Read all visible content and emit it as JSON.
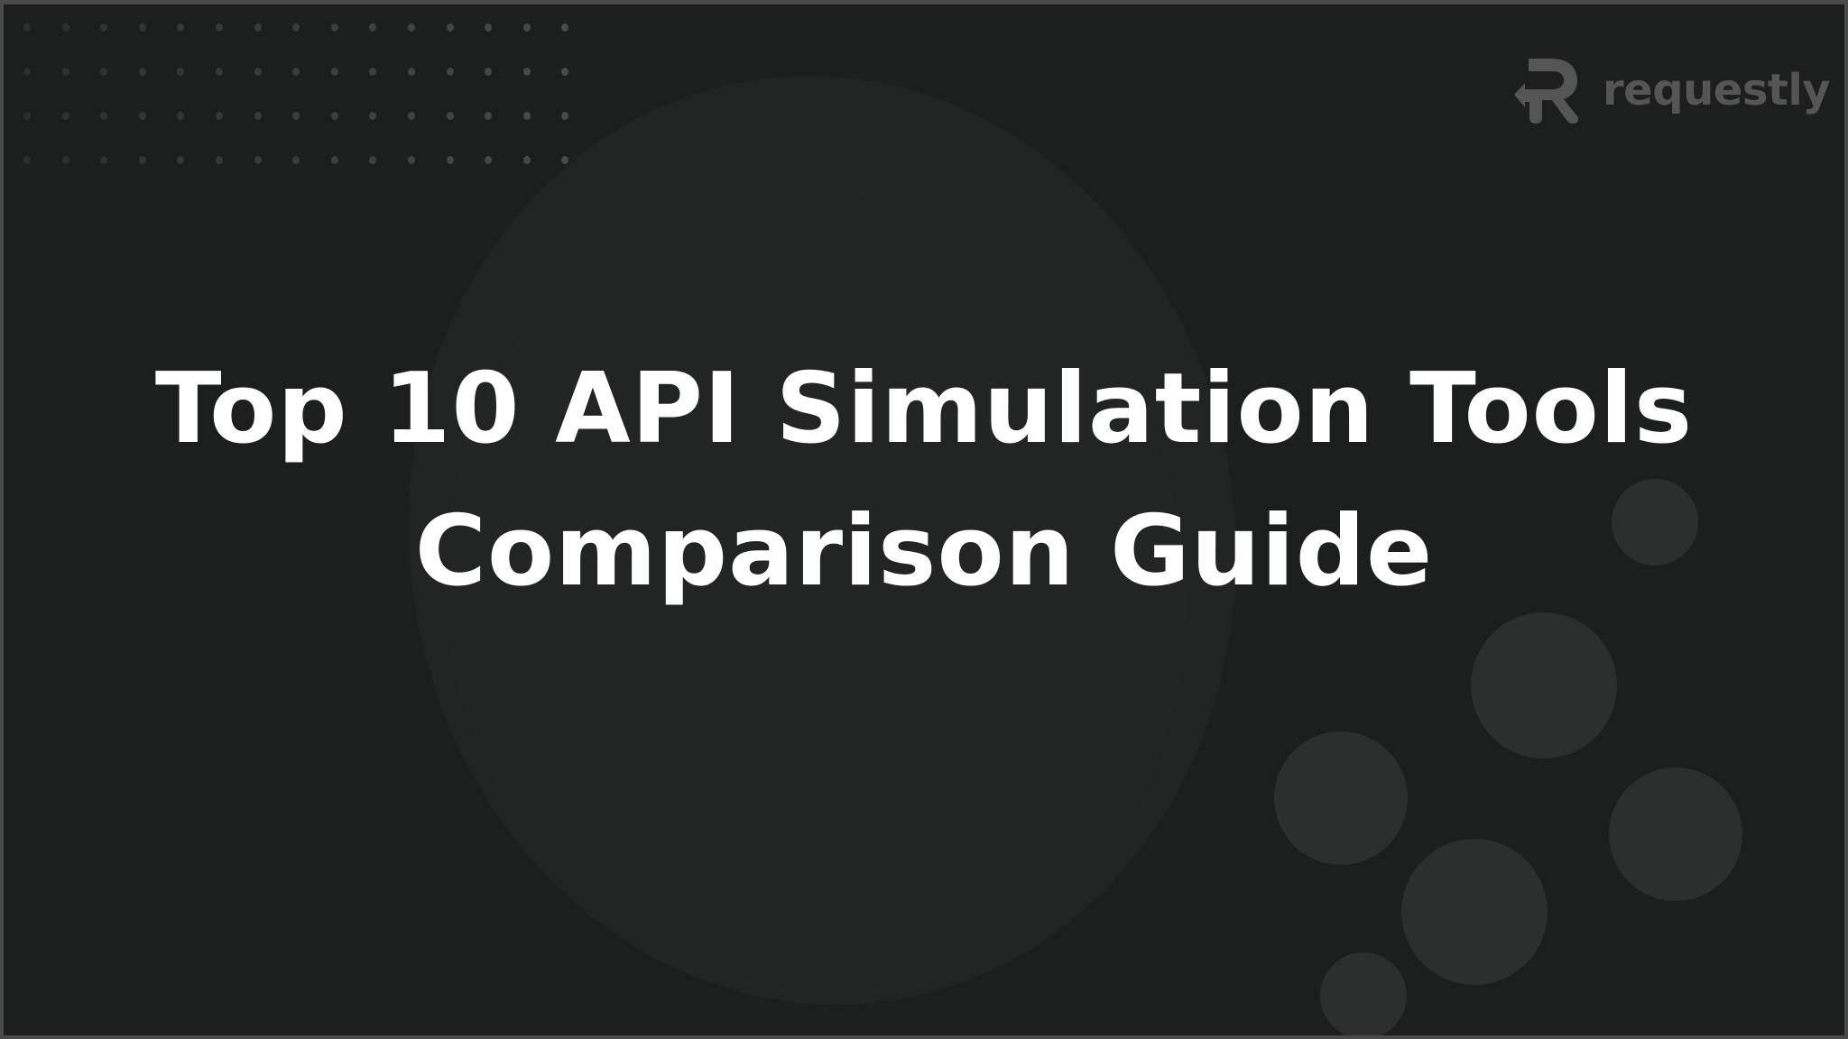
{
  "title": {
    "line1": "Top 10 API Simulation Tools",
    "line2": "Comparison Guide"
  },
  "logo": {
    "text": "requestly",
    "icon": "requestly-r-arrow-icon",
    "color": "#555555"
  },
  "colors": {
    "background": "#1d1e1e",
    "title": "#ffffff",
    "decor_circles": "#2d2e2e"
  }
}
